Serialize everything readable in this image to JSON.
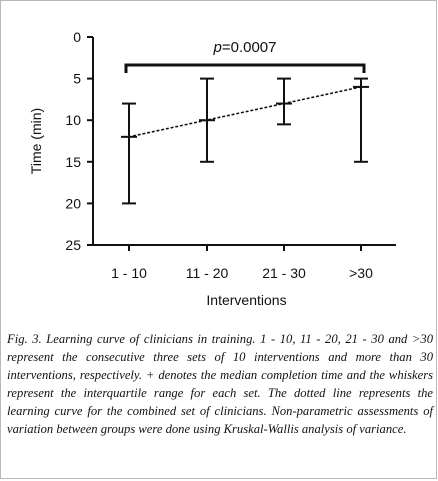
{
  "chart_data": {
    "type": "box",
    "categories": [
      "1 - 10",
      "11 - 20",
      "21 - 30",
      ">30"
    ],
    "medians": [
      12,
      10,
      8,
      6
    ],
    "q1": [
      8,
      5,
      5,
      5
    ],
    "q3": [
      20,
      15,
      10.5,
      15
    ],
    "xlabel": "Interventions",
    "ylabel": "Time (min)",
    "ylim": [
      0,
      25
    ],
    "y_inverted": true,
    "yticks": [
      0,
      5,
      10,
      15,
      20,
      25
    ],
    "grid": false,
    "annotation": "p=0.0007",
    "bracket_from_category": "1 - 10",
    "bracket_to_category": ">30",
    "trend_line": {
      "style": "dotted",
      "from": 12,
      "to": 6
    }
  },
  "caption": "Fig. 3. Learning curve of clinicians in training. 1 - 10, 11 - 20, 21 - 30 and >30 represent the consecutive three sets of 10 interventions and more than 30 interventions, respectively. + denotes the median completion time and the whiskers represent the interquartile range for each set. The dotted line represents the learning curve for the combined set of clinicians. Non-parametric assessments of variation between groups were done using Kruskal-Wallis analysis of variance."
}
